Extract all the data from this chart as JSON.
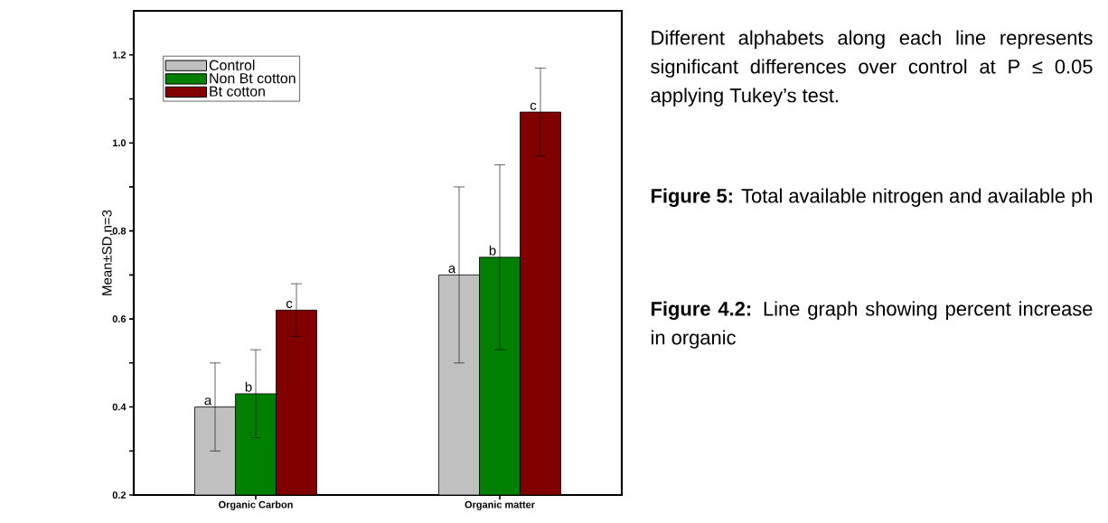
{
  "chart_data": {
    "type": "bar",
    "ylabel": "Mean±SD,n=3",
    "categories": [
      "Organic Carbon",
      "Organic matter"
    ],
    "series": [
      {
        "name": "Control",
        "color": "#c0c0c0",
        "values": [
          0.4,
          0.7
        ],
        "errors": [
          0.1,
          0.2
        ],
        "value_labels": [
          "a",
          "a"
        ]
      },
      {
        "name": "Non Bt cotton",
        "color": "#008000",
        "values": [
          0.43,
          0.74
        ],
        "errors": [
          0.1,
          0.21
        ],
        "value_labels": [
          "b",
          "b"
        ]
      },
      {
        "name": "Bt cotton",
        "color": "#800000",
        "values": [
          0.62,
          1.07
        ],
        "errors": [
          0.06,
          0.1
        ],
        "value_labels": [
          "c",
          "c"
        ]
      }
    ],
    "ylim": [
      0.2,
      1.3
    ],
    "yticks": [
      0.2,
      {
        "value": 0.3,
        "label": null
      },
      0.4,
      {
        "value": 0.5,
        "label": null
      },
      0.6,
      {
        "value": 0.7,
        "label": null
      },
      0.8,
      {
        "value": 0.9,
        "label": null
      },
      {
        "value": 1.0,
        "label": "1.0"
      },
      {
        "value": 1.1,
        "label": null
      },
      1.2
    ],
    "legend": "top left",
    "grid": false,
    "annotations": [
      "Different alphabets along each line represents significant differences over control at P ≤ 0.05 applying Tukey’s test.",
      "**Figure 5:** Total available nitrogen and available ph",
      "**Figure 4.2:** Line graph showing percent increase in organic"
    ]
  }
}
